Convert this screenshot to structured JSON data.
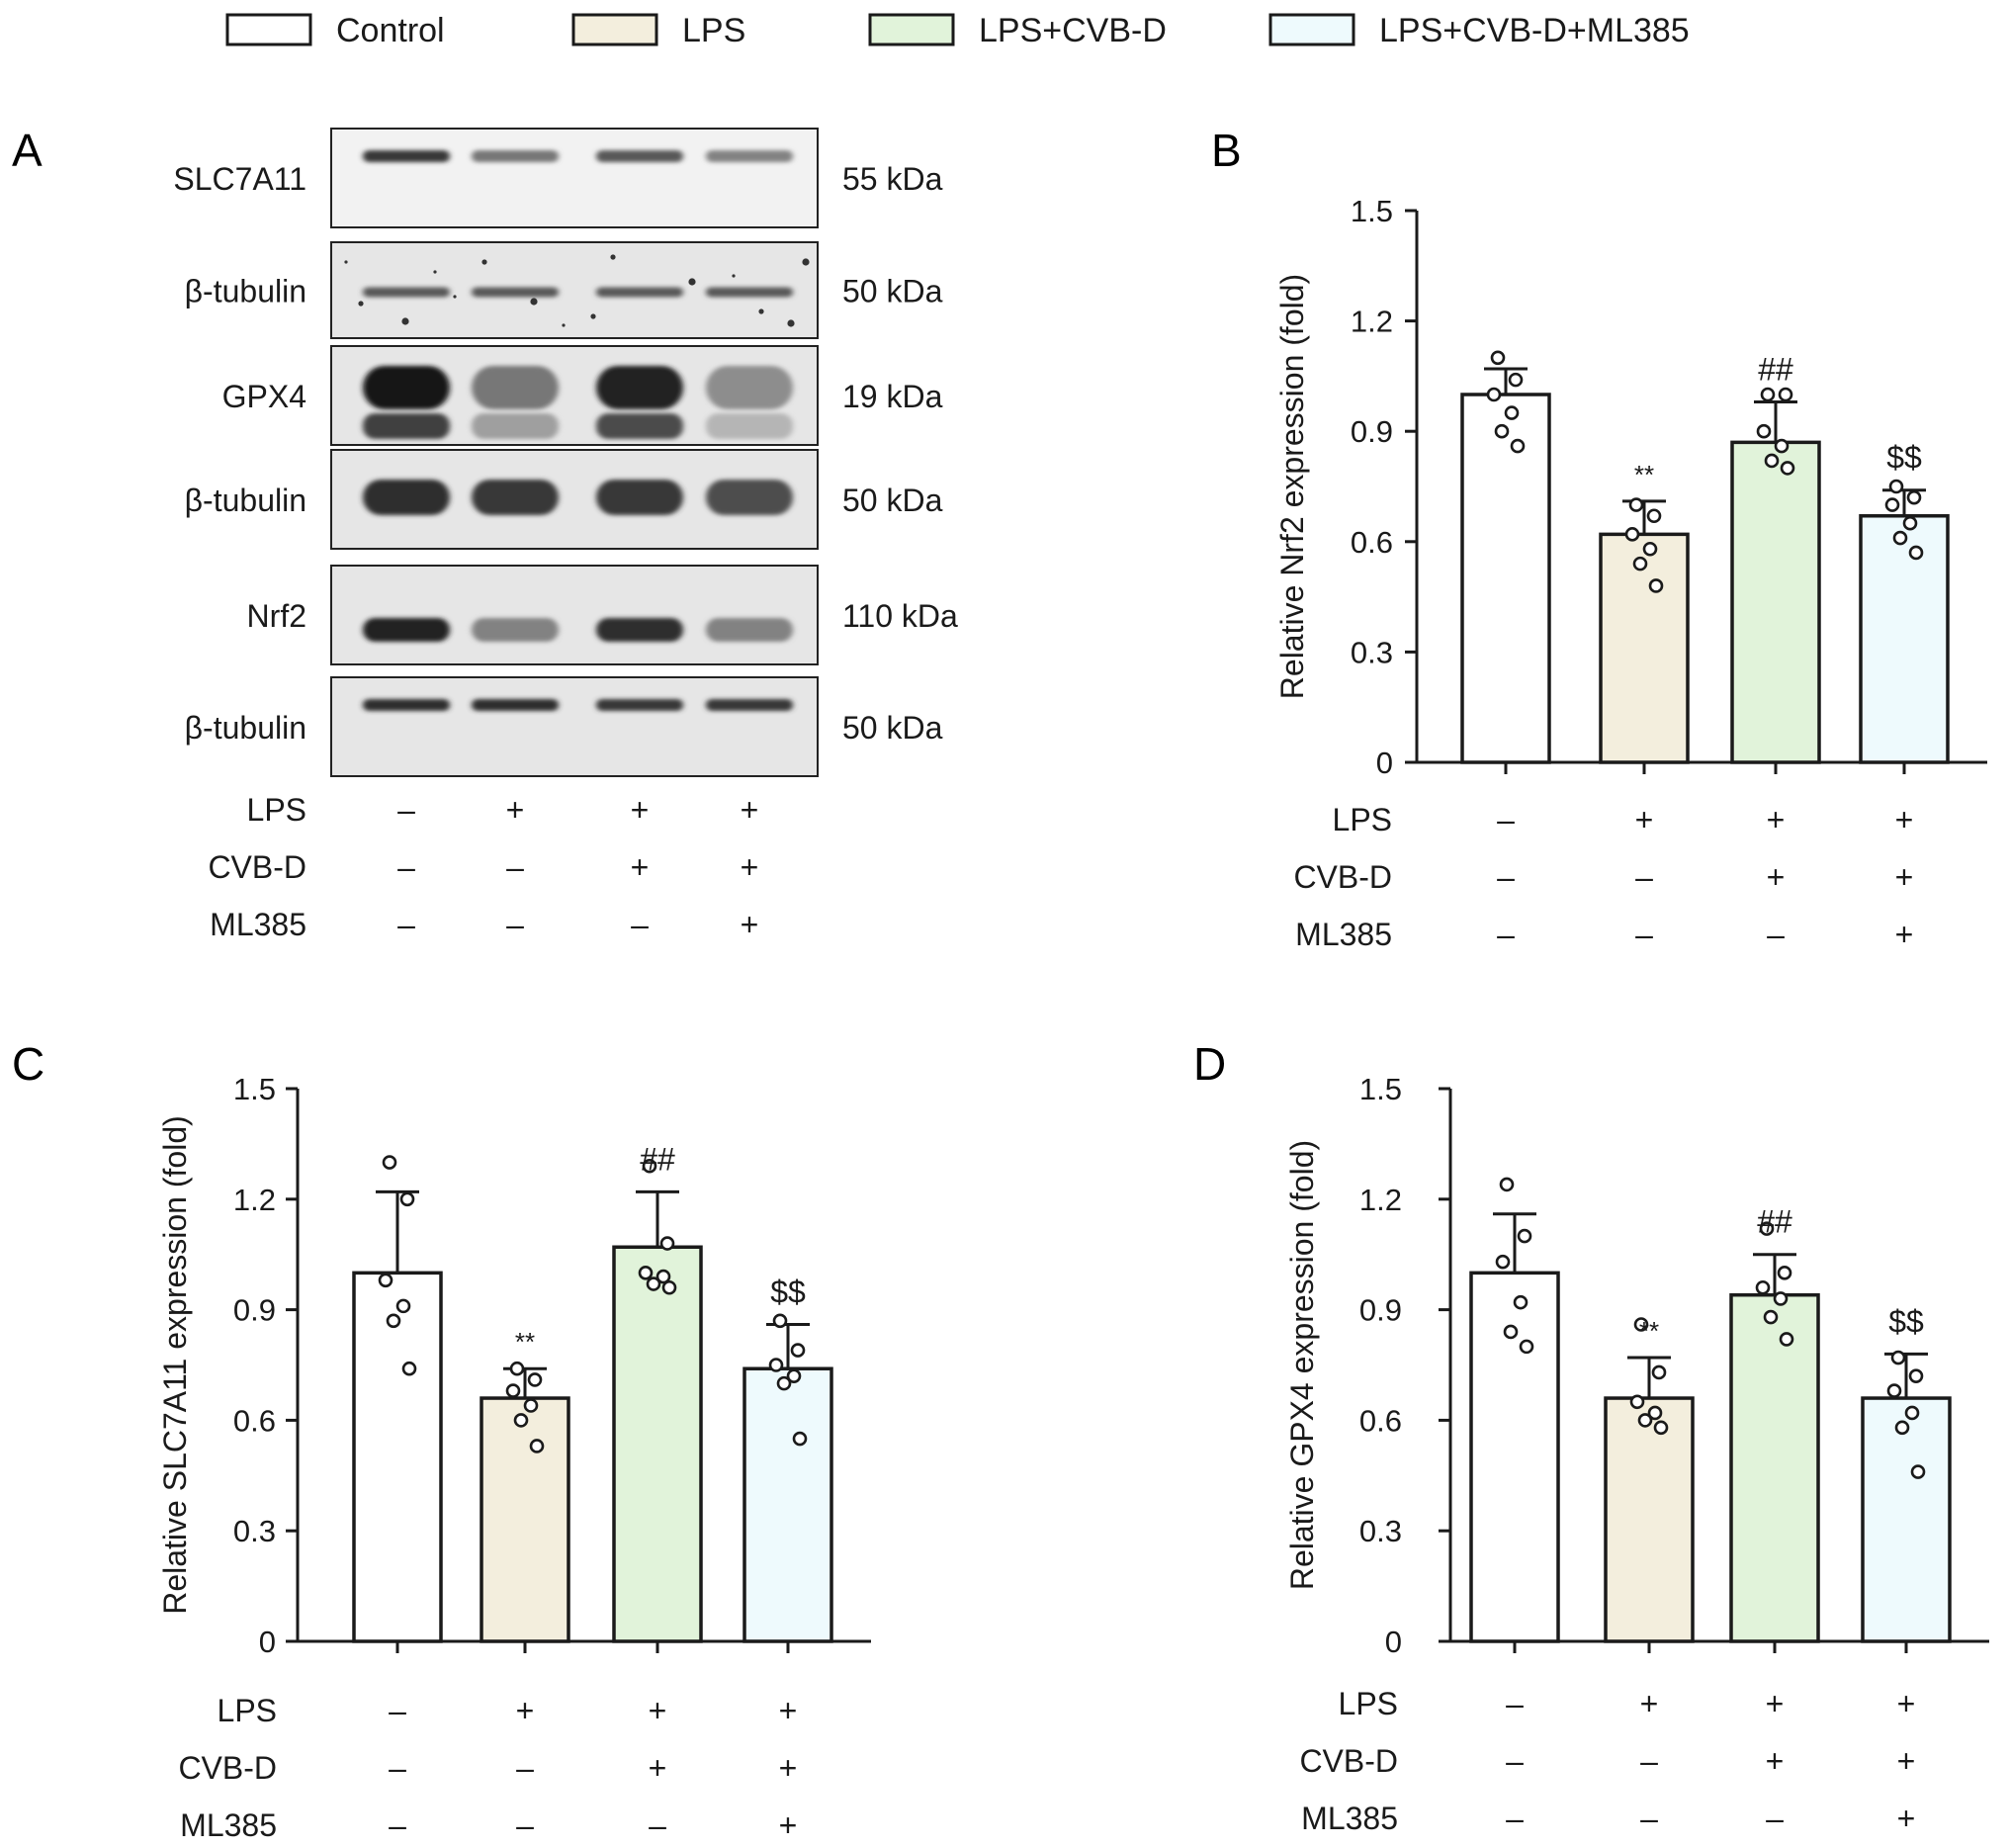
{
  "legend": [
    {
      "label": "Control",
      "color": "#ffffff"
    },
    {
      "label": "LPS",
      "color": "#f3eedd"
    },
    {
      "label": "LPS+CVB-D",
      "color": "#e1f3da"
    },
    {
      "label": "LPS+CVB-D+ML385",
      "color": "#eefafd"
    }
  ],
  "panel_letters": {
    "A": "A",
    "B": "B",
    "C": "C",
    "D": "D"
  },
  "blot": {
    "rows": [
      {
        "label": "SLC7A11",
        "size": "55 kDa",
        "intensities": [
          0.85,
          0.55,
          0.7,
          0.5
        ],
        "style": "thin"
      },
      {
        "label": "β-tubulin",
        "size": "50 kDa",
        "intensities": [
          0.7,
          0.7,
          0.7,
          0.7
        ],
        "style": "noisy"
      },
      {
        "label": "GPX4",
        "size": "19 kDa",
        "intensities": [
          1.0,
          0.55,
          0.95,
          0.45
        ],
        "style": "strong"
      },
      {
        "label": "β-tubulin",
        "size": "50 kDa",
        "intensities": [
          0.9,
          0.85,
          0.85,
          0.75
        ],
        "style": "thick"
      },
      {
        "label": "Nrf2",
        "size": "110 kDa",
        "intensities": [
          0.95,
          0.5,
          0.9,
          0.5
        ],
        "style": "medium"
      },
      {
        "label": "β-tubulin",
        "size": "50 kDa",
        "intensities": [
          0.9,
          0.9,
          0.85,
          0.85
        ],
        "style": "thin"
      }
    ],
    "conditions": [
      {
        "label": "LPS",
        "signs": [
          "–",
          "+",
          "+",
          "+"
        ]
      },
      {
        "label": "CVB-D",
        "signs": [
          "–",
          "–",
          "+",
          "+"
        ]
      },
      {
        "label": "ML385",
        "signs": [
          "–",
          "–",
          "–",
          "+"
        ]
      }
    ]
  },
  "chart_data": [
    {
      "panel": "B",
      "type": "bar",
      "ylabel": "Relative Nrf2 expression (fold)",
      "ylim": [
        0,
        1.5
      ],
      "yticks": [
        "0",
        "0.3",
        "0.6",
        "0.9",
        "1.2",
        "1.5"
      ],
      "categories": [
        "Control",
        "LPS",
        "LPS+CVB-D",
        "LPS+CVB-D+ML385"
      ],
      "values": [
        1.0,
        0.62,
        0.87,
        0.67
      ],
      "errors": [
        0.07,
        0.09,
        0.11,
        0.07
      ],
      "points": [
        [
          1.1,
          1.04,
          1.0,
          0.95,
          0.9,
          0.86
        ],
        [
          0.7,
          0.67,
          0.62,
          0.58,
          0.54,
          0.48
        ],
        [
          1.0,
          1.0,
          0.9,
          0.86,
          0.82,
          0.8
        ],
        [
          0.75,
          0.72,
          0.7,
          0.65,
          0.61,
          0.57
        ]
      ],
      "annotations": [
        "",
        "**",
        "##",
        "$$"
      ],
      "conditions": [
        {
          "label": "LPS",
          "signs": [
            "–",
            "+",
            "+",
            "+"
          ]
        },
        {
          "label": "CVB-D",
          "signs": [
            "–",
            "–",
            "+",
            "+"
          ]
        },
        {
          "label": "ML385",
          "signs": [
            "–",
            "–",
            "–",
            "+"
          ]
        }
      ]
    },
    {
      "panel": "C",
      "type": "bar",
      "ylabel": "Relative SLC7A11 expression (fold)",
      "ylim": [
        0,
        1.5
      ],
      "yticks": [
        "0",
        "0.3",
        "0.6",
        "0.9",
        "1.2",
        "1.5"
      ],
      "categories": [
        "Control",
        "LPS",
        "LPS+CVB-D",
        "LPS+CVB-D+ML385"
      ],
      "values": [
        1.0,
        0.66,
        1.07,
        0.74
      ],
      "errors": [
        0.22,
        0.08,
        0.15,
        0.12
      ],
      "points": [
        [
          1.3,
          1.2,
          0.98,
          0.91,
          0.87,
          0.74
        ],
        [
          0.74,
          0.71,
          0.68,
          0.64,
          0.6,
          0.53
        ],
        [
          1.29,
          1.08,
          1.0,
          0.99,
          0.97,
          0.96
        ],
        [
          0.87,
          0.79,
          0.75,
          0.72,
          0.7,
          0.55
        ]
      ],
      "annotations": [
        "",
        "**",
        "##",
        "$$"
      ],
      "conditions": [
        {
          "label": "LPS",
          "signs": [
            "–",
            "+",
            "+",
            "+"
          ]
        },
        {
          "label": "CVB-D",
          "signs": [
            "–",
            "–",
            "+",
            "+"
          ]
        },
        {
          "label": "ML385",
          "signs": [
            "–",
            "–",
            "–",
            "+"
          ]
        }
      ]
    },
    {
      "panel": "D",
      "type": "bar",
      "ylabel": "Relative GPX4 expression (fold)",
      "ylim": [
        0,
        1.5
      ],
      "yticks": [
        "0",
        "0.3",
        "0.6",
        "0.9",
        "1.2",
        "1.5"
      ],
      "categories": [
        "Control",
        "LPS",
        "LPS+CVB-D",
        "LPS+CVB-D+ML385"
      ],
      "values": [
        1.0,
        0.66,
        0.94,
        0.66
      ],
      "errors": [
        0.16,
        0.11,
        0.11,
        0.12
      ],
      "points": [
        [
          1.24,
          1.1,
          1.03,
          0.92,
          0.84,
          0.8
        ],
        [
          0.86,
          0.73,
          0.65,
          0.62,
          0.6,
          0.58
        ],
        [
          1.12,
          1.0,
          0.96,
          0.93,
          0.88,
          0.82
        ],
        [
          0.77,
          0.72,
          0.68,
          0.62,
          0.58,
          0.46
        ]
      ],
      "annotations": [
        "",
        "**",
        "##",
        "$$"
      ],
      "conditions": [
        {
          "label": "LPS",
          "signs": [
            "–",
            "+",
            "+",
            "+"
          ]
        },
        {
          "label": "CVB-D",
          "signs": [
            "–",
            "–",
            "+",
            "+"
          ]
        },
        {
          "label": "ML385",
          "signs": [
            "–",
            "–",
            "–",
            "+"
          ]
        }
      ]
    }
  ]
}
